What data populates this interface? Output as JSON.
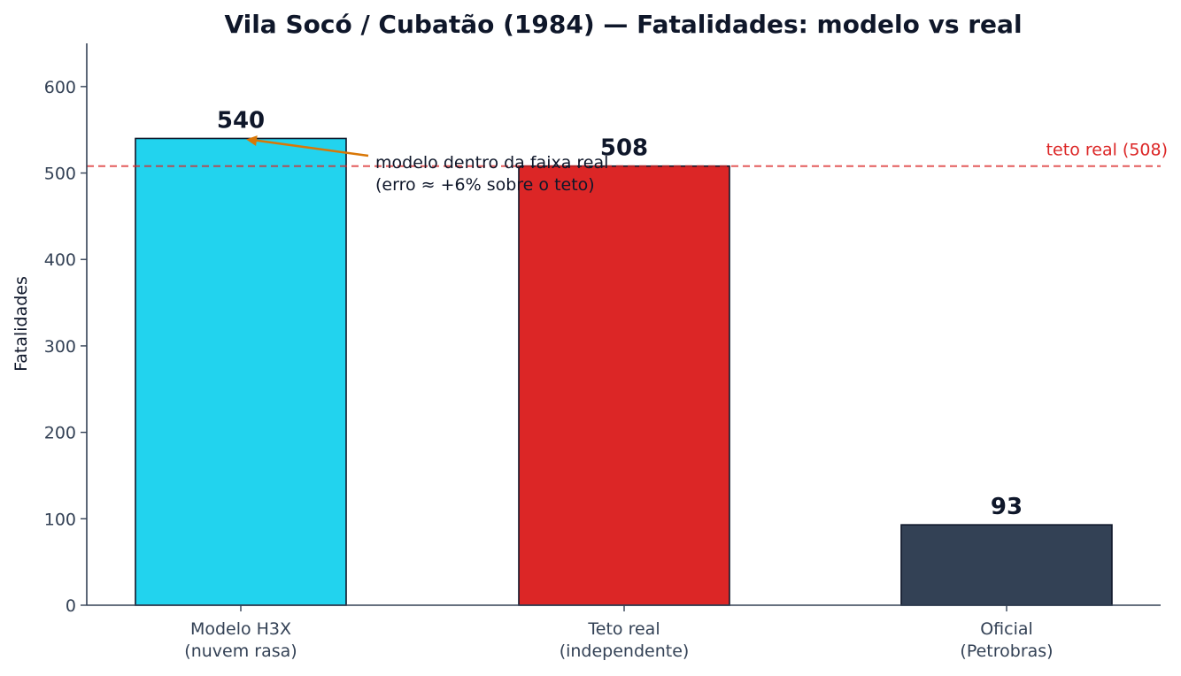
{
  "chart_data": {
    "type": "bar",
    "title": "Vila Socó / Cubatão (1984) — Fatalidades: modelo vs real",
    "xlabel": "",
    "ylabel": "Fatalidades",
    "ylim": [
      0,
      650
    ],
    "yticks": [
      0,
      100,
      200,
      300,
      400,
      500,
      600
    ],
    "grid": false,
    "categories": [
      [
        "Modelo H3X",
        "(nuvem rasa)"
      ],
      [
        "Teto real",
        "(independente)"
      ],
      [
        "Oficial",
        "(Petrobras)"
      ]
    ],
    "values": [
      540,
      508,
      93
    ],
    "value_labels": [
      "540",
      "508",
      "93"
    ],
    "bar_colors": [
      "#22d3ee",
      "#dc2626",
      "#334155"
    ],
    "bar_edge_color": "#0f172a",
    "reference_line": {
      "value": 508,
      "label": "teto real (508)",
      "color": "#dc2626",
      "style": "dashed"
    },
    "annotation": {
      "lines": [
        "modelo dentro da faixa real",
        "(erro ≈ +6% sobre o teto)"
      ],
      "arrow_color": "#d97706",
      "target_category_index": 0,
      "target_value": 540
    },
    "colors": {
      "axis": "#334155",
      "text": "#0f172a",
      "tick_text": "#334155"
    }
  }
}
